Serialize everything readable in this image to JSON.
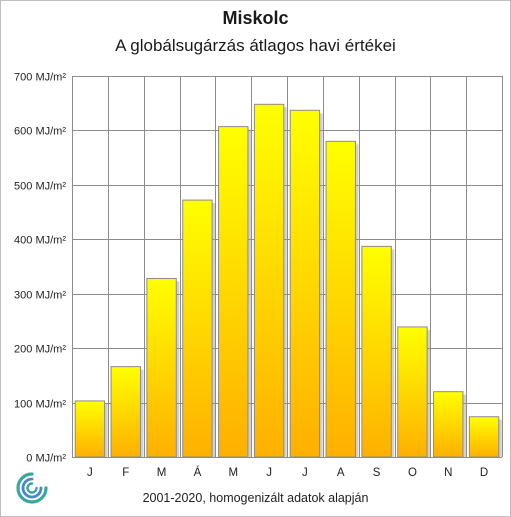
{
  "chart_data": {
    "type": "bar",
    "title": "Miskolc",
    "subtitle": "A globálsugárzás átlagos havi értékei",
    "categories": [
      "J",
      "F",
      "M",
      "Á",
      "M",
      "J",
      "J",
      "A",
      "S",
      "O",
      "N",
      "D"
    ],
    "values": [
      103,
      166,
      328,
      472,
      607,
      648,
      637,
      580,
      387,
      239,
      120,
      74
    ],
    "ylim": [
      0,
      700
    ],
    "y_ticks": [
      0,
      100,
      200,
      300,
      400,
      500,
      600,
      700
    ],
    "y_tick_unit": "MJ/m²",
    "grid": true,
    "legend": "none",
    "colors": {
      "bar_top": "#ffff00",
      "bar_bottom": "#ffb000",
      "bar_stroke": "#8c8c8c",
      "grid": "#8c8c8c"
    }
  },
  "footnote": "2001-2020,  homogenizált adatok alapján",
  "logo_icon": "swirl-logo-icon"
}
